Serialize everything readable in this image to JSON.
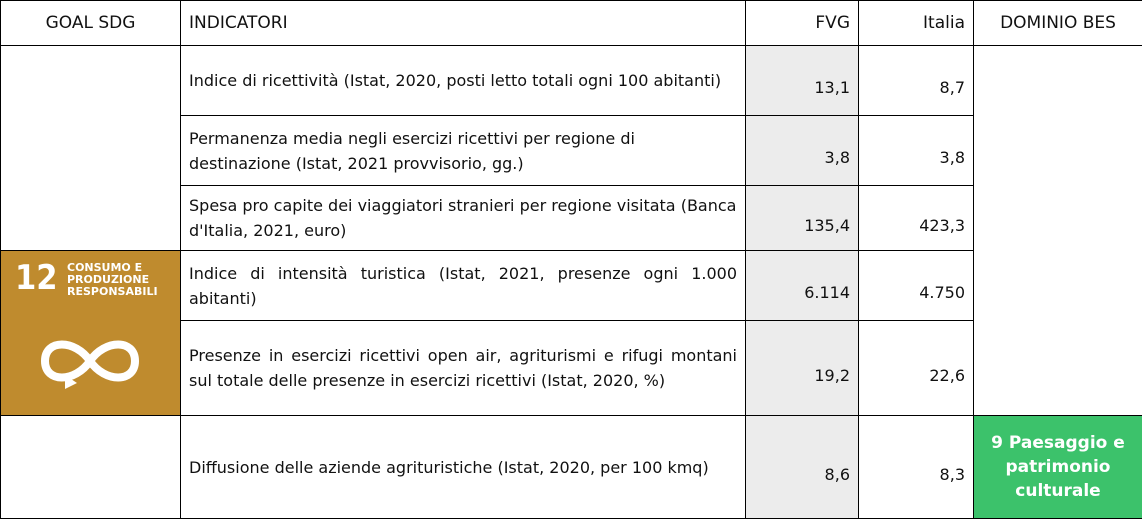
{
  "header": [
    "GOAL SDG",
    "INDICATORI",
    "FVG",
    "Italia",
    "DOMINIO BES"
  ],
  "sdg": {
    "number": "12",
    "label": [
      "CONSUMO E",
      "PRODUZIONE",
      "RESPONSABILI"
    ]
  },
  "rows": [
    {
      "indicator": "Indice di ricettività (Istat, 2020, posti letto totali ogni 100 abitanti)",
      "fvg": "13,1",
      "italia": "8,7"
    },
    {
      "indicator": "Permanenza media negli esercizi ricettivi per regione di destinazione (Istat, 2021 provvisorio, gg.)",
      "fvg": "3,8",
      "italia": "3,8"
    },
    {
      "indicator": "Spesa pro capite dei viaggiatori stranieri per regione visitata (Banca d'Italia, 2021, euro)",
      "fvg": "135,4",
      "italia": "423,3"
    },
    {
      "indicator": "Indice di intensità turistica (Istat, 2021, presenze ogni 1.000 abitanti)",
      "fvg": "6.114",
      "italia": "4.750"
    },
    {
      "indicator": "Presenze in esercizi ricettivi open air, agriturismi e rifugi montani sul totale delle presenze in esercizi ricettivi (Istat, 2020, %)",
      "fvg": "19,2",
      "italia": "22,6"
    },
    {
      "indicator": "Diffusione delle aziende agrituristiche (Istat, 2020, per 100 kmq)",
      "fvg": "8,6",
      "italia": "8,3"
    }
  ],
  "dominio": "9 Paesaggio e patrimonio culturale"
}
